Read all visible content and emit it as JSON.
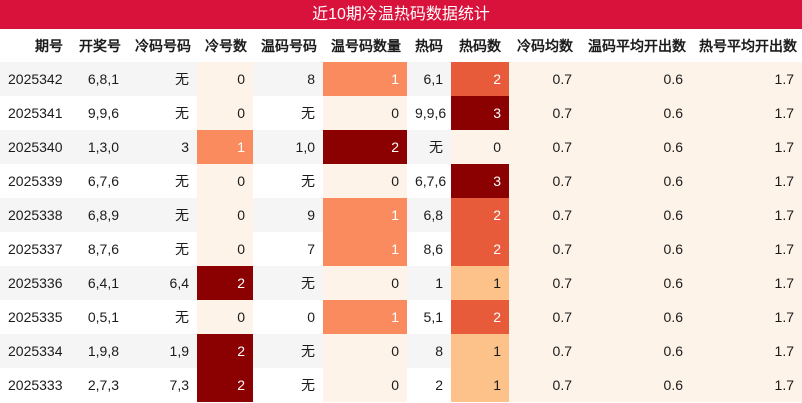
{
  "title": "近10期冷温热码数据统计",
  "headers": [
    "期号",
    "开奖号",
    "冷码号码",
    "冷号数",
    "温码号码",
    "温号码数量",
    "热码",
    "热码数",
    "冷码均数",
    "温码平均开出数",
    "热号平均开出数"
  ],
  "rows": [
    {
      "period": "2025342",
      "draw": "6,8,1",
      "cold_nums": "无",
      "cold_count": "0",
      "warm_nums": "8",
      "warm_count": "1",
      "hot_nums": "6,1",
      "hot_count": "2",
      "cold_avg": "0.7",
      "warm_avg": "0.6",
      "hot_avg": "1.7"
    },
    {
      "period": "2025341",
      "draw": "9,9,6",
      "cold_nums": "无",
      "cold_count": "0",
      "warm_nums": "无",
      "warm_count": "0",
      "hot_nums": "9,9,6",
      "hot_count": "3",
      "cold_avg": "0.7",
      "warm_avg": "0.6",
      "hot_avg": "1.7"
    },
    {
      "period": "2025340",
      "draw": "1,3,0",
      "cold_nums": "3",
      "cold_count": "1",
      "warm_nums": "1,0",
      "warm_count": "2",
      "hot_nums": "无",
      "hot_count": "0",
      "cold_avg": "0.7",
      "warm_avg": "0.6",
      "hot_avg": "1.7"
    },
    {
      "period": "2025339",
      "draw": "6,7,6",
      "cold_nums": "无",
      "cold_count": "0",
      "warm_nums": "无",
      "warm_count": "0",
      "hot_nums": "6,7,6",
      "hot_count": "3",
      "cold_avg": "0.7",
      "warm_avg": "0.6",
      "hot_avg": "1.7"
    },
    {
      "period": "2025338",
      "draw": "6,8,9",
      "cold_nums": "无",
      "cold_count": "0",
      "warm_nums": "9",
      "warm_count": "1",
      "hot_nums": "6,8",
      "hot_count": "2",
      "cold_avg": "0.7",
      "warm_avg": "0.6",
      "hot_avg": "1.7"
    },
    {
      "period": "2025337",
      "draw": "8,7,6",
      "cold_nums": "无",
      "cold_count": "0",
      "warm_nums": "7",
      "warm_count": "1",
      "hot_nums": "8,6",
      "hot_count": "2",
      "cold_avg": "0.7",
      "warm_avg": "0.6",
      "hot_avg": "1.7"
    },
    {
      "period": "2025336",
      "draw": "6,4,1",
      "cold_nums": "6,4",
      "cold_count": "2",
      "warm_nums": "无",
      "warm_count": "0",
      "hot_nums": "1",
      "hot_count": "1",
      "cold_avg": "0.7",
      "warm_avg": "0.6",
      "hot_avg": "1.7"
    },
    {
      "period": "2025335",
      "draw": "0,5,1",
      "cold_nums": "无",
      "cold_count": "0",
      "warm_nums": "0",
      "warm_count": "1",
      "hot_nums": "5,1",
      "hot_count": "2",
      "cold_avg": "0.7",
      "warm_avg": "0.6",
      "hot_avg": "1.7"
    },
    {
      "period": "2025334",
      "draw": "1,9,8",
      "cold_nums": "1,9",
      "cold_count": "2",
      "warm_nums": "无",
      "warm_count": "0",
      "hot_nums": "8",
      "hot_count": "1",
      "cold_avg": "0.7",
      "warm_avg": "0.6",
      "hot_avg": "1.7"
    },
    {
      "period": "2025333",
      "draw": "2,7,3",
      "cold_nums": "7,3",
      "cold_count": "2",
      "warm_nums": "无",
      "warm_count": "0",
      "hot_nums": "2",
      "hot_count": "1",
      "cold_avg": "0.7",
      "warm_avg": "0.6",
      "hot_avg": "1.7"
    }
  ],
  "colors": {
    "title_bg": "#d9123c",
    "count_light": "#fef3e8",
    "count_1_warm": "#f98b5e",
    "count_2_dark": "#8b0000",
    "hot_1": "#fdc28a",
    "hot_2": "#e75a3a",
    "hot_3": "#8b0000"
  }
}
